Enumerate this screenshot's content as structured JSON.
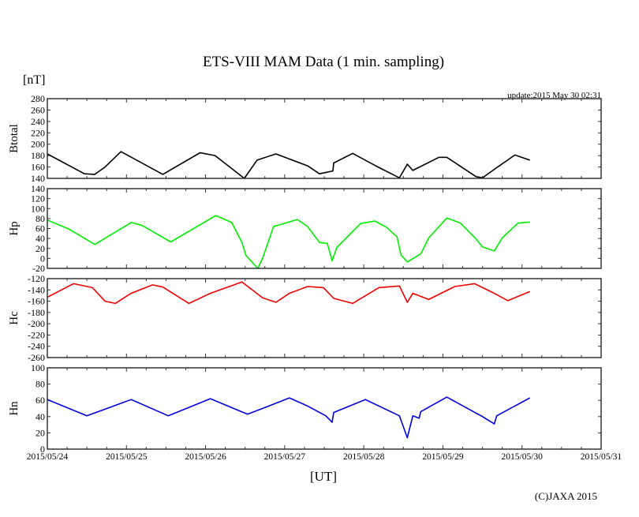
{
  "chart_data": {
    "type": "line",
    "title": "ETS-VIII MAM Data (1 min. sampling)",
    "unit_label": "[nT]",
    "update_text": "update:2015 May 30 02:31",
    "xlabel": "[UT]",
    "copyright": "(C)JAXA 2015",
    "x_unit": "days since 2015/05/24 00:00 UT",
    "xlim": [
      0,
      7
    ],
    "x_tick_labels": [
      "2015/05/24",
      "2015/05/25",
      "2015/05/26",
      "2015/05/27",
      "2015/05/28",
      "2015/05/29",
      "2015/05/30",
      "2015/05/31"
    ],
    "panels": [
      {
        "name": "Btotal",
        "color": "#000000",
        "ylim": [
          140,
          280
        ],
        "ystep": 20,
        "x": [
          0,
          0.47,
          0.6,
          0.73,
          0.93,
          1.46,
          1.93,
          2.12,
          2.49,
          2.65,
          2.89,
          3.29,
          3.44,
          3.61,
          3.62,
          3.86,
          4.15,
          4.45,
          4.55,
          4.62,
          4.95,
          5.05,
          5.42,
          5.5,
          5.65,
          5.91,
          6.1
        ],
        "y": [
          183,
          148,
          147,
          160,
          187,
          147,
          185,
          180,
          140,
          172,
          183,
          162,
          148,
          153,
          167,
          184,
          162,
          141,
          165,
          154,
          177,
          177,
          143,
          141,
          156,
          181,
          172
        ]
      },
      {
        "name": "Hp",
        "color": "#00ee00",
        "ylim": [
          -20,
          140
        ],
        "ystep": 20,
        "x": [
          0,
          0.27,
          0.6,
          1.06,
          1.2,
          1.56,
          2.13,
          2.33,
          2.46,
          2.51,
          2.66,
          2.72,
          2.86,
          3.16,
          3.29,
          3.44,
          3.54,
          3.6,
          3.66,
          3.96,
          4.14,
          4.29,
          4.42,
          4.47,
          4.55,
          4.72,
          4.82,
          5.05,
          5.22,
          5.42,
          5.5,
          5.65,
          5.75,
          5.95,
          6.1
        ],
        "y": [
          77,
          59,
          28,
          72,
          66,
          33,
          86,
          72,
          32,
          6,
          -20,
          0,
          64,
          78,
          64,
          32,
          30,
          -5,
          22,
          70,
          75,
          62,
          43,
          7,
          -7,
          9,
          41,
          81,
          71,
          39,
          23,
          15,
          41,
          71,
          73
        ]
      },
      {
        "name": "Hc",
        "color": "#ee0000",
        "ylim": [
          -260,
          -120
        ],
        "ystep": 20,
        "x": [
          0,
          0.33,
          0.57,
          0.73,
          0.86,
          1.06,
          1.33,
          1.46,
          1.79,
          2.06,
          2.46,
          2.72,
          2.89,
          3.06,
          3.29,
          3.49,
          3.62,
          3.86,
          4.19,
          4.45,
          4.55,
          4.62,
          4.82,
          5.15,
          5.4,
          5.62,
          5.82,
          6.1
        ],
        "y": [
          -153,
          -129,
          -136,
          -160,
          -164,
          -146,
          -131,
          -135,
          -164,
          -146,
          -126,
          -154,
          -162,
          -146,
          -134,
          -136,
          -155,
          -164,
          -136,
          -133,
          -162,
          -146,
          -157,
          -134,
          -129,
          -144,
          -159,
          -143
        ]
      },
      {
        "name": "Hn",
        "color": "#0000dd",
        "ylim": [
          0,
          100
        ],
        "ystep": 20,
        "x": [
          0,
          0.5,
          1.06,
          1.53,
          2.06,
          2.53,
          2.72,
          3.06,
          3.29,
          3.52,
          3.6,
          3.62,
          4.02,
          4.45,
          4.55,
          4.62,
          4.7,
          4.72,
          5.05,
          5.5,
          5.65,
          5.68,
          6.1
        ],
        "y": [
          61,
          41,
          61,
          41,
          62,
          43,
          50,
          63,
          53,
          41,
          33,
          45,
          61,
          41,
          14,
          41,
          38,
          46,
          64,
          40,
          31,
          41,
          63
        ]
      }
    ]
  }
}
